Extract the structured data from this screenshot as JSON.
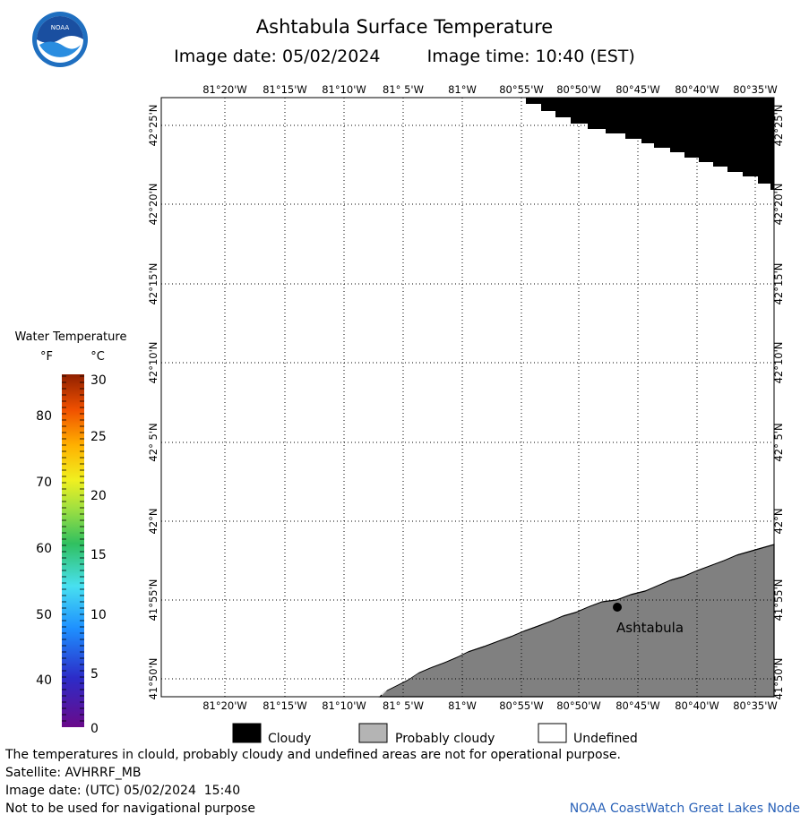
{
  "header": {
    "title": "Ashtabula Surface Temperature",
    "image_date_label": "Image date: 05/02/2024",
    "image_time_label": "Image time: 10:40 (EST)"
  },
  "logo": {
    "text": "NOAA",
    "icon": "noaa-logo"
  },
  "map": {
    "top_lon_labels": [
      "81°20'W",
      "81°15'W",
      "81°10'W",
      "81° 5'W",
      "81°W",
      "80°55'W",
      "80°50'W",
      "80°45'W",
      "80°40'W",
      "80°35'W"
    ],
    "bottom_lon_labels": [
      "81°20'W",
      "81°15'W",
      "81°10'W",
      "81° 5'W",
      "81°W",
      "80°55'W",
      "80°50'W",
      "80°45'W",
      "80°40'W",
      "80°35'W"
    ],
    "lat_labels": [
      "42°25'N",
      "42°20'N",
      "42°15'N",
      "42°10'N",
      "42° 5'N",
      "42°N",
      "41°55'N",
      "41°50'N"
    ],
    "city": {
      "name": "Ashtabula",
      "icon": "city-marker"
    },
    "colors": {
      "cloudy": "#000000",
      "land": "#808080",
      "water_undefined": "#ffffff"
    }
  },
  "colorbar": {
    "title": "Water Temperature",
    "unit_f": "°F",
    "unit_c": "°C",
    "f_ticks": [
      "80",
      "70",
      "60",
      "50",
      "40"
    ],
    "c_ticks": [
      "30",
      "25",
      "20",
      "15",
      "10",
      "5",
      "0"
    ]
  },
  "key": {
    "cloudy": "Cloudy",
    "probably_cloudy": "Probably cloudy",
    "undefined": "Undefined"
  },
  "footer": {
    "disclaimer": "The temperatures in clould, probably cloudy and undefined areas are not for operational purpose.",
    "satellite": "Satellite: AVHRRF_MB",
    "utc_date": "Image date: (UTC) 05/02/2024  15:40",
    "nav_warning": "Not to be used for navigational purpose",
    "node": "NOAA CoastWatch Great Lakes Node"
  }
}
